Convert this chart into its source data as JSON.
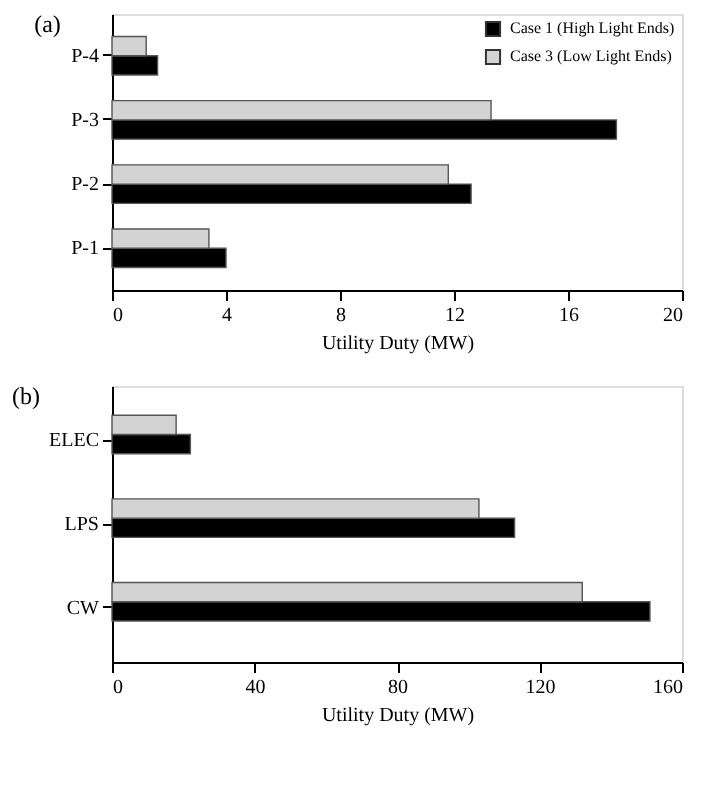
{
  "chart_data": [
    {
      "type": "bar",
      "orientation": "horizontal",
      "title": "(a)",
      "xlabel": "Utility Duty (MW)",
      "categories": [
        "P-4",
        "P-3",
        "P-2",
        "P-1"
      ],
      "series": [
        {
          "name": "Case 1 (High Light Ends)",
          "color": "#000000",
          "values": [
            1.6,
            17.7,
            12.6,
            4.0
          ]
        },
        {
          "name": "Case 3 (Low Light Ends)",
          "color": "#d3d3d3",
          "values": [
            1.2,
            13.3,
            11.8,
            3.4
          ]
        }
      ],
      "xlim": [
        0,
        20
      ],
      "xticks": [
        0,
        4,
        8,
        12,
        16,
        20
      ],
      "legend": "top right",
      "grid": false
    },
    {
      "type": "bar",
      "orientation": "horizontal",
      "title": "(b)",
      "xlabel": "Utility Duty (MW)",
      "categories": [
        "ELEC",
        "LPS",
        "CW"
      ],
      "series": [
        {
          "name": "Case 1 (High Light Ends)",
          "color": "#000000",
          "values": [
            22,
            113,
            151
          ]
        },
        {
          "name": "Case 3 (Low Light Ends)",
          "color": "#d3d3d3",
          "values": [
            18,
            103,
            132
          ]
        }
      ],
      "xlim": [
        0,
        160
      ],
      "xticks": [
        0,
        40,
        80,
        120,
        160
      ],
      "legend": "top right",
      "grid": false
    }
  ]
}
